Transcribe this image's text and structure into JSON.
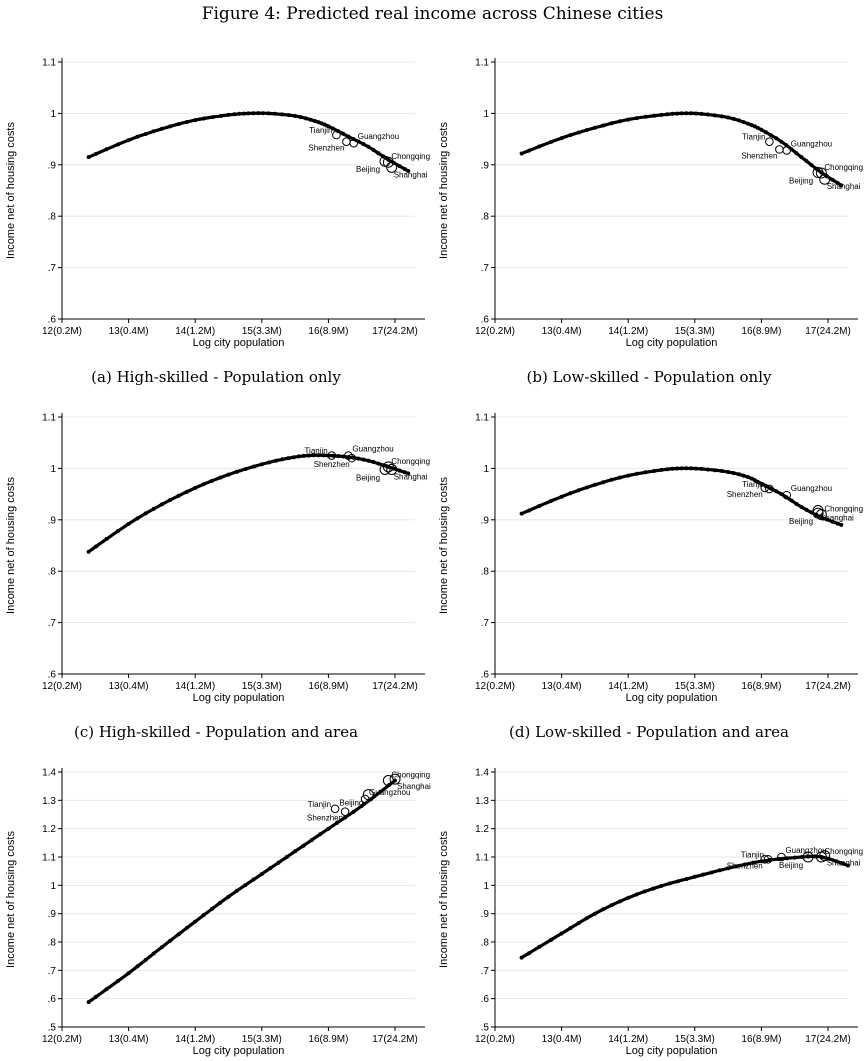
{
  "figure_title": "Figure 4: Predicted real income across Chinese cities",
  "chart_data": [
    {
      "type": "line",
      "caption": "(a) High-skilled - Population only",
      "xlabel": "Log city population",
      "ylabel": "Income net of housing costs",
      "xlim": [
        12,
        17.3
      ],
      "ylim": [
        0.6,
        1.1
      ],
      "xticks": [
        12,
        13,
        14,
        15,
        16,
        17
      ],
      "xtick_labels": [
        "12(0.2M)",
        "13(0.4M)",
        "14(1.2M)",
        "15(3.3M)",
        "16(8.9M)",
        "17(24.2M)"
      ],
      "yticks": [
        0.6,
        0.7,
        0.8,
        0.9,
        1.0,
        1.1
      ],
      "ytick_labels": [
        ".6",
        ".7",
        ".8",
        ".9",
        "1",
        "1.1"
      ],
      "grid": true,
      "curve": {
        "x": [
          12.4,
          13.0,
          13.5,
          14.0,
          14.5,
          14.8,
          15.1,
          15.5,
          15.8,
          16.0,
          16.3,
          16.6,
          16.9,
          17.2
        ],
        "y": [
          0.915,
          0.948,
          0.97,
          0.987,
          0.997,
          1.0,
          1.0,
          0.995,
          0.985,
          0.975,
          0.955,
          0.935,
          0.91,
          0.888
        ]
      },
      "cities": [
        {
          "name": "Tianjin",
          "x": 16.12,
          "y": 0.958
        },
        {
          "name": "Shenzhen",
          "x": 16.27,
          "y": 0.945
        },
        {
          "name": "Guangzhou",
          "x": 16.38,
          "y": 0.942
        },
        {
          "name": "Beijing",
          "x": 16.85,
          "y": 0.907
        },
        {
          "name": "Chongqing",
          "x": 16.9,
          "y": 0.905
        },
        {
          "name": "Shanghai",
          "x": 16.95,
          "y": 0.895
        }
      ]
    },
    {
      "type": "line",
      "caption": "(b) Low-skilled - Population only",
      "xlabel": "Log city population",
      "ylabel": "Income net of housing costs",
      "xlim": [
        12,
        17.3
      ],
      "ylim": [
        0.6,
        1.1
      ],
      "xticks": [
        12,
        13,
        14,
        15,
        16,
        17
      ],
      "xtick_labels": [
        "12(0.2M)",
        "13(0.4M)",
        "14(1.2M)",
        "15(3.3M)",
        "16(8.9M)",
        "17(24.2M)"
      ],
      "yticks": [
        0.6,
        0.7,
        0.8,
        0.9,
        1.0,
        1.1
      ],
      "ytick_labels": [
        ".6",
        ".7",
        ".8",
        ".9",
        "1",
        "1.1"
      ],
      "grid": true,
      "curve": {
        "x": [
          12.4,
          13.0,
          13.5,
          14.0,
          14.5,
          14.8,
          15.1,
          15.5,
          15.8,
          16.0,
          16.3,
          16.6,
          16.9,
          17.2
        ],
        "y": [
          0.922,
          0.952,
          0.972,
          0.988,
          0.997,
          1.0,
          0.999,
          0.992,
          0.98,
          0.968,
          0.945,
          0.915,
          0.885,
          0.86
        ]
      },
      "cities": [
        {
          "name": "Tianjin",
          "x": 16.12,
          "y": 0.945
        },
        {
          "name": "Shenzhen",
          "x": 16.27,
          "y": 0.93
        },
        {
          "name": "Guangzhou",
          "x": 16.38,
          "y": 0.928
        },
        {
          "name": "Beijing",
          "x": 16.85,
          "y": 0.885
        },
        {
          "name": "Chongqing",
          "x": 16.9,
          "y": 0.884
        },
        {
          "name": "Shanghai",
          "x": 16.95,
          "y": 0.872
        }
      ]
    },
    {
      "type": "line",
      "caption": "(c) High-skilled - Population and area",
      "xlabel": "Log city population",
      "ylabel": "Income net of housing costs",
      "xlim": [
        12,
        17.3
      ],
      "ylim": [
        0.6,
        1.1
      ],
      "xticks": [
        12,
        13,
        14,
        15,
        16,
        17
      ],
      "xtick_labels": [
        "12(0.2M)",
        "13(0.4M)",
        "14(1.2M)",
        "15(3.3M)",
        "16(8.9M)",
        "17(24.2M)"
      ],
      "yticks": [
        0.6,
        0.7,
        0.8,
        0.9,
        1.0,
        1.1
      ],
      "ytick_labels": [
        ".6",
        ".7",
        ".8",
        ".9",
        "1",
        "1.1"
      ],
      "grid": true,
      "curve": {
        "x": [
          12.4,
          13.0,
          13.5,
          14.0,
          14.5,
          15.0,
          15.4,
          15.7,
          16.0,
          16.3,
          16.6,
          16.9,
          17.2
        ],
        "y": [
          0.838,
          0.892,
          0.93,
          0.962,
          0.988,
          1.008,
          1.02,
          1.025,
          1.025,
          1.022,
          1.015,
          1.003,
          0.99
        ]
      },
      "cities": [
        {
          "name": "Tianjin",
          "x": 16.05,
          "y": 1.025
        },
        {
          "name": "Guangzhou",
          "x": 16.3,
          "y": 1.025
        },
        {
          "name": "Shenzhen",
          "x": 16.35,
          "y": 1.02
        },
        {
          "name": "Chongqing",
          "x": 16.9,
          "y": 1.003
        },
        {
          "name": "Beijing",
          "x": 16.85,
          "y": 0.998
        },
        {
          "name": "Shanghai",
          "x": 16.95,
          "y": 0.998
        }
      ]
    },
    {
      "type": "line",
      "caption": "(d) Low-skilled - Population and area",
      "xlabel": "Log city population",
      "ylabel": "Income net of housing costs",
      "xlim": [
        12,
        17.3
      ],
      "ylim": [
        0.6,
        1.1
      ],
      "xticks": [
        12,
        13,
        14,
        15,
        16,
        17
      ],
      "xtick_labels": [
        "12(0.2M)",
        "13(0.4M)",
        "14(1.2M)",
        "15(3.3M)",
        "16(8.9M)",
        "17(24.2M)"
      ],
      "yticks": [
        0.6,
        0.7,
        0.8,
        0.9,
        1.0,
        1.1
      ],
      "ytick_labels": [
        ".6",
        ".7",
        ".8",
        ".9",
        "1",
        "1.1"
      ],
      "grid": true,
      "curve": {
        "x": [
          12.4,
          13.0,
          13.5,
          14.0,
          14.5,
          14.8,
          15.1,
          15.5,
          15.8,
          16.0,
          16.3,
          16.6,
          16.9,
          17.2
        ],
        "y": [
          0.912,
          0.945,
          0.968,
          0.986,
          0.997,
          1.0,
          0.999,
          0.993,
          0.983,
          0.97,
          0.95,
          0.925,
          0.905,
          0.89
        ]
      },
      "cities": [
        {
          "name": "Shenzhen",
          "x": 16.05,
          "y": 0.962
        },
        {
          "name": "Tianjin",
          "x": 16.12,
          "y": 0.96
        },
        {
          "name": "Guangzhou",
          "x": 16.38,
          "y": 0.948
        },
        {
          "name": "Shanghai",
          "x": 16.85,
          "y": 0.918
        },
        {
          "name": "Beijing",
          "x": 16.85,
          "y": 0.913
        },
        {
          "name": "Chongqing",
          "x": 16.9,
          "y": 0.91
        }
      ]
    },
    {
      "type": "line",
      "caption": "",
      "xlabel": "Log city population",
      "ylabel": "Income net of housing costs",
      "xlim": [
        12,
        17.3
      ],
      "ylim": [
        0.5,
        1.4
      ],
      "xticks": [
        12,
        13,
        14,
        15,
        16,
        17
      ],
      "xtick_labels": [
        "12(0.2M)",
        "13(0.4M)",
        "14(1.2M)",
        "15(3.3M)",
        "16(8.9M)",
        "17(24.2M)"
      ],
      "yticks": [
        0.5,
        0.6,
        0.7,
        0.8,
        0.9,
        1.0,
        1.1,
        1.2,
        1.3,
        1.4
      ],
      "ytick_labels": [
        ".5",
        ".6",
        ".7",
        ".8",
        ".9",
        "1",
        "1.1",
        "1.2",
        "1.3",
        "1.4"
      ],
      "grid": true,
      "curve": {
        "x": [
          12.4,
          13.0,
          13.5,
          14.0,
          14.5,
          15.0,
          15.5,
          16.0,
          16.5,
          17.0
        ],
        "y": [
          0.588,
          0.69,
          0.782,
          0.872,
          0.96,
          1.04,
          1.12,
          1.2,
          1.28,
          1.37
        ]
      },
      "cities": [
        {
          "name": "Tianjin",
          "x": 16.1,
          "y": 1.27
        },
        {
          "name": "Shenzhen",
          "x": 16.25,
          "y": 1.26
        },
        {
          "name": "Guangzhou",
          "x": 16.55,
          "y": 1.305
        },
        {
          "name": "Beijing",
          "x": 16.6,
          "y": 1.32
        },
        {
          "name": "Chongqing",
          "x": 16.9,
          "y": 1.37
        },
        {
          "name": "Shanghai",
          "x": 17.0,
          "y": 1.375
        }
      ]
    },
    {
      "type": "line",
      "caption": "",
      "xlabel": "Log city population",
      "ylabel": "Income net of housing costs",
      "xlim": [
        12,
        17.3
      ],
      "ylim": [
        0.5,
        1.4
      ],
      "xticks": [
        12,
        13,
        14,
        15,
        16,
        17
      ],
      "xtick_labels": [
        "12(0.2M)",
        "13(0.4M)",
        "14(1.2M)",
        "15(3.3M)",
        "16(8.9M)",
        "17(24.2M)"
      ],
      "yticks": [
        0.5,
        0.6,
        0.7,
        0.8,
        0.9,
        1.0,
        1.1,
        1.2,
        1.3,
        1.4
      ],
      "ytick_labels": [
        ".5",
        ".6",
        ".7",
        ".8",
        ".9",
        "1",
        "1.1",
        "1.2",
        "1.3",
        "1.4"
      ],
      "grid": true,
      "curve": {
        "x": [
          12.4,
          13.0,
          13.5,
          14.0,
          14.5,
          15.0,
          15.5,
          16.0,
          16.5,
          16.9,
          17.3
        ],
        "y": [
          0.745,
          0.83,
          0.9,
          0.956,
          0.998,
          1.03,
          1.06,
          1.085,
          1.098,
          1.1,
          1.07
        ]
      },
      "cities": [
        {
          "name": "Shenzhen",
          "x": 16.05,
          "y": 1.092
        },
        {
          "name": "Tianjin",
          "x": 16.1,
          "y": 1.092
        },
        {
          "name": "Guangzhou",
          "x": 16.3,
          "y": 1.1
        },
        {
          "name": "Beijing",
          "x": 16.7,
          "y": 1.1
        },
        {
          "name": "Shanghai",
          "x": 16.95,
          "y": 1.105
        },
        {
          "name": "Chongqing",
          "x": 16.9,
          "y": 1.1
        }
      ]
    }
  ]
}
